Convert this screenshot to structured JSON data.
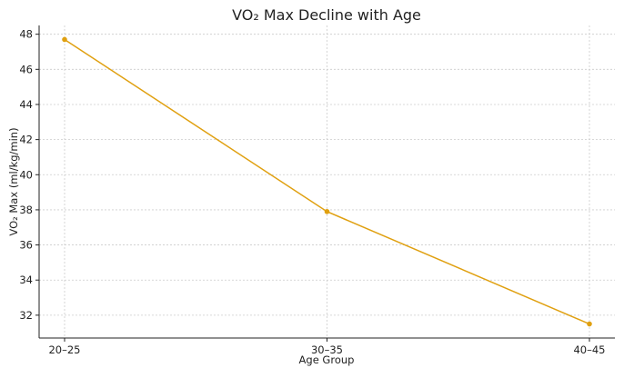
{
  "chart_data": {
    "type": "line",
    "title": "VO₂ Max Decline with Age",
    "xlabel": "Age Group",
    "ylabel": "VO₂ Max (ml/kg/min)",
    "categories": [
      "20–25",
      "30–35",
      "40–45"
    ],
    "series": [
      {
        "values": [
          47.7,
          37.9,
          31.5
        ],
        "color": "#E0A010"
      }
    ],
    "ylim": [
      30.7,
      48.5
    ],
    "yticks": [
      32,
      34,
      36,
      38,
      40,
      42,
      44,
      46,
      48
    ],
    "grid": true,
    "marker": "circle"
  }
}
